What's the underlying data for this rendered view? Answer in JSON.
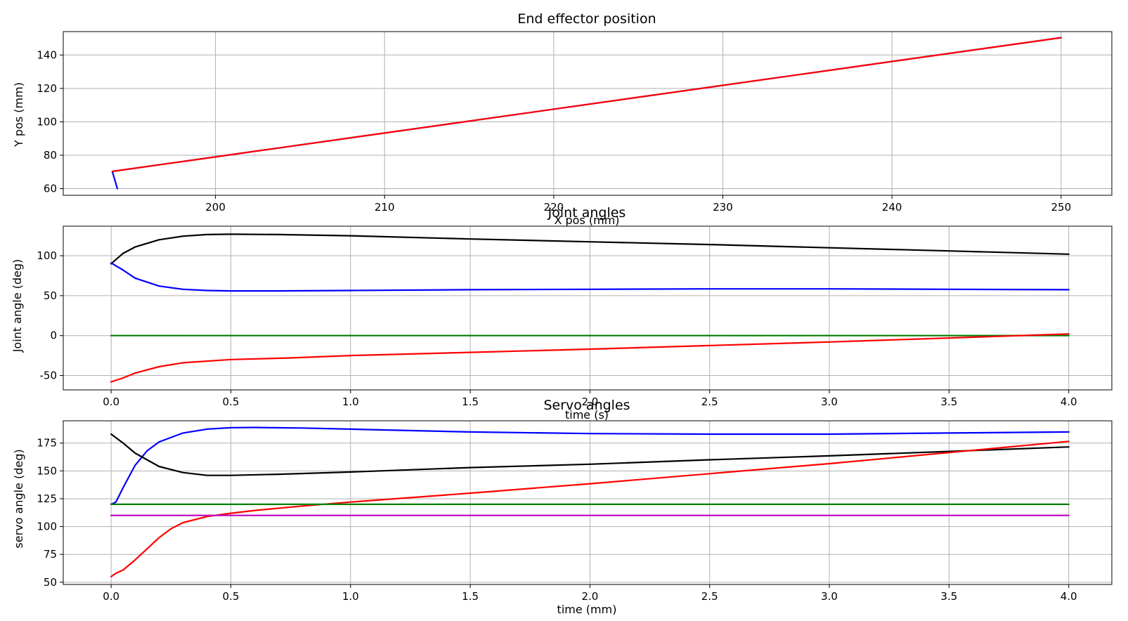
{
  "chart_data": [
    {
      "type": "line",
      "title": "End effector position",
      "xlabel": "X pos (mm)",
      "ylabel": "Y pos (mm)",
      "xlim": [
        191,
        253
      ],
      "ylim": [
        56,
        154
      ],
      "xticks": [
        200,
        210,
        220,
        230,
        240,
        250
      ],
      "yticks": [
        60,
        80,
        100,
        120,
        140
      ],
      "grid": true,
      "series": [
        {
          "color": "#0000ff",
          "points": [
            [
              194.2,
              60.0
            ],
            [
              193.9,
              70.3
            ],
            [
              250.0,
              150.4
            ]
          ]
        },
        {
          "color": "#ff0000",
          "points": [
            [
              193.9,
              70.3
            ],
            [
              250.0,
              150.4
            ]
          ]
        }
      ]
    },
    {
      "type": "line",
      "title": "Joint angles",
      "xlabel": "time (s)",
      "ylabel": "Joint angle (deg)",
      "xlim": [
        -0.2,
        4.18
      ],
      "ylim": [
        -68,
        137
      ],
      "xticks": [
        0.0,
        0.5,
        1.0,
        1.5,
        2.0,
        2.5,
        3.0,
        3.5,
        4.0
      ],
      "xticklabels": [
        "0.0",
        "0.5",
        "1.0",
        "1.5",
        "2.0",
        "2.5",
        "3.0",
        "3.5",
        "4.0"
      ],
      "yticks": [
        -50,
        0,
        50,
        100
      ],
      "grid": true,
      "series": [
        {
          "color": "#000000",
          "points": [
            [
              0,
              90
            ],
            [
              0.05,
              103
            ],
            [
              0.1,
              111
            ],
            [
              0.2,
              120
            ],
            [
              0.3,
              124.5
            ],
            [
              0.4,
              126.5
            ],
            [
              0.5,
              127
            ],
            [
              0.7,
              126.5
            ],
            [
              1.0,
              125
            ],
            [
              1.5,
              121
            ],
            [
              2.0,
              117.5
            ],
            [
              2.5,
              114
            ],
            [
              3.0,
              110
            ],
            [
              3.5,
              106
            ],
            [
              4.0,
              102
            ]
          ]
        },
        {
          "color": "#0000ff",
          "points": [
            [
              0,
              91
            ],
            [
              0.05,
              82
            ],
            [
              0.1,
              72
            ],
            [
              0.2,
              62
            ],
            [
              0.3,
              58
            ],
            [
              0.4,
              56.5
            ],
            [
              0.5,
              56
            ],
            [
              0.7,
              56
            ],
            [
              1.0,
              56.5
            ],
            [
              1.5,
              57.5
            ],
            [
              2.0,
              58
            ],
            [
              2.5,
              58.5
            ],
            [
              3.0,
              58.5
            ],
            [
              3.5,
              58
            ],
            [
              4.0,
              57.5
            ]
          ]
        },
        {
          "color": "#008000",
          "points": [
            [
              0,
              0
            ],
            [
              4.0,
              0
            ]
          ]
        },
        {
          "color": "#ff0000",
          "points": [
            [
              0,
              -58
            ],
            [
              0.05,
              -53
            ],
            [
              0.1,
              -47
            ],
            [
              0.2,
              -39
            ],
            [
              0.3,
              -34
            ],
            [
              0.5,
              -30
            ],
            [
              0.75,
              -28
            ],
            [
              1.0,
              -25
            ],
            [
              1.5,
              -21
            ],
            [
              2.0,
              -17
            ],
            [
              2.5,
              -12.5
            ],
            [
              3.0,
              -8
            ],
            [
              3.5,
              -3
            ],
            [
              4.0,
              2
            ]
          ]
        }
      ]
    },
    {
      "type": "line",
      "title": "Servo angles",
      "xlabel": "time (mm)",
      "ylabel": "servo angle (deg)",
      "xlim": [
        -0.2,
        4.18
      ],
      "ylim": [
        48,
        195
      ],
      "xticks": [
        0.0,
        0.5,
        1.0,
        1.5,
        2.0,
        2.5,
        3.0,
        3.5,
        4.0
      ],
      "xticklabels": [
        "0.0",
        "0.5",
        "1.0",
        "1.5",
        "2.0",
        "2.5",
        "3.0",
        "3.5",
        "4.0"
      ],
      "yticks": [
        50,
        75,
        100,
        125,
        150,
        175
      ],
      "grid": true,
      "series": [
        {
          "color": "#0000ff",
          "points": [
            [
              0,
              120
            ],
            [
              0.02,
              122
            ],
            [
              0.05,
              135
            ],
            [
              0.1,
              155
            ],
            [
              0.15,
              168
            ],
            [
              0.2,
              176
            ],
            [
              0.3,
              184
            ],
            [
              0.4,
              187.5
            ],
            [
              0.5,
              188.8
            ],
            [
              0.6,
              189
            ],
            [
              0.8,
              188.5
            ],
            [
              1.0,
              187.5
            ],
            [
              1.5,
              185
            ],
            [
              2.0,
              183.5
            ],
            [
              2.5,
              183
            ],
            [
              3.0,
              183
            ],
            [
              3.5,
              184
            ],
            [
              4.0,
              185
            ]
          ]
        },
        {
          "color": "#000000",
          "points": [
            [
              0,
              183
            ],
            [
              0.05,
              175
            ],
            [
              0.1,
              166
            ],
            [
              0.2,
              154
            ],
            [
              0.3,
              148.5
            ],
            [
              0.4,
              146
            ],
            [
              0.5,
              146
            ],
            [
              0.7,
              147
            ],
            [
              1.0,
              149
            ],
            [
              1.5,
              153
            ],
            [
              2.0,
              156
            ],
            [
              2.5,
              160
            ],
            [
              3.0,
              163.5
            ],
            [
              3.5,
              167.5
            ],
            [
              4.0,
              171.5
            ]
          ]
        },
        {
          "color": "#ff0000",
          "points": [
            [
              0,
              55
            ],
            [
              0.02,
              58
            ],
            [
              0.05,
              61
            ],
            [
              0.1,
              70
            ],
            [
              0.15,
              80
            ],
            [
              0.2,
              90
            ],
            [
              0.25,
              98
            ],
            [
              0.3,
              103.5
            ],
            [
              0.4,
              109
            ],
            [
              0.5,
              112
            ],
            [
              0.6,
              114.5
            ],
            [
              0.8,
              118.5
            ],
            [
              1.0,
              122
            ],
            [
              1.5,
              130
            ],
            [
              2.0,
              138.5
            ],
            [
              2.5,
              147.5
            ],
            [
              3.0,
              156.5
            ],
            [
              3.5,
              166.5
            ],
            [
              4.0,
              176.5
            ]
          ]
        },
        {
          "color": "#008000",
          "points": [
            [
              0,
              120
            ],
            [
              4.0,
              120
            ]
          ]
        },
        {
          "color": "#bf00bf",
          "points": [
            [
              0,
              110
            ],
            [
              4.0,
              110
            ]
          ]
        }
      ]
    }
  ]
}
